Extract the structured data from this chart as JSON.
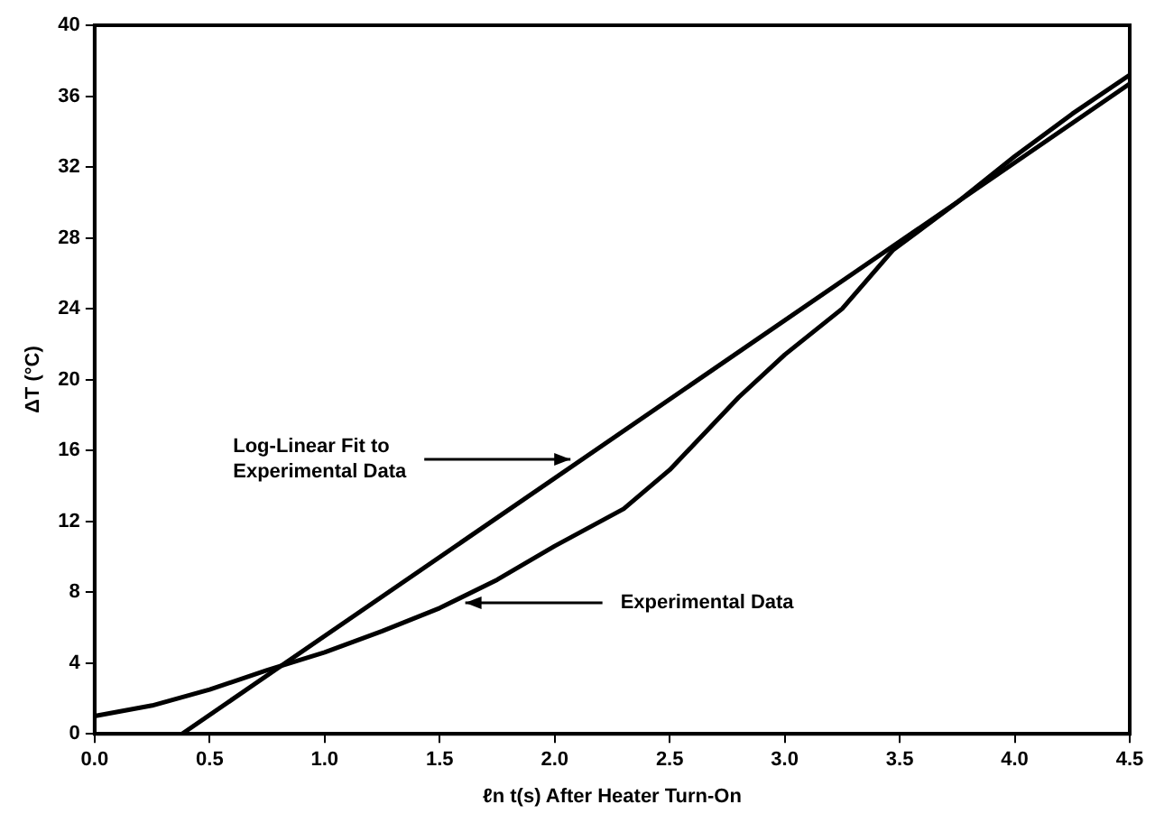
{
  "chart_data": {
    "type": "line",
    "xlabel": "ℓn t(s) After Heater Turn-On",
    "ylabel": "ΔT (°C)",
    "xlim": [
      0,
      4.5
    ],
    "xticks": [
      {
        "value": 0,
        "label": "0.0"
      },
      {
        "value": 0.5,
        "label": "0.5"
      },
      {
        "value": 1,
        "label": "1.0"
      },
      {
        "value": 1.5,
        "label": "1.5"
      },
      {
        "value": 2,
        "label": "2.0"
      },
      {
        "value": 2.5,
        "label": "2.5"
      },
      {
        "value": 3,
        "label": "3.0"
      },
      {
        "value": 3.5,
        "label": "3.5"
      },
      {
        "value": 4,
        "label": "4.0"
      },
      {
        "value": 4.5,
        "label": "4.5"
      }
    ],
    "ylim": [
      0,
      40
    ],
    "yticks": [
      0,
      4,
      8,
      12,
      16,
      20,
      24,
      28,
      32,
      36,
      40
    ],
    "grid": false,
    "legend": false,
    "marker": "none",
    "line_style": "solid",
    "series": [
      {
        "color": "#000000",
        "x": [
          0,
          0.25,
          0.5,
          0.75,
          1,
          1.25,
          1.5,
          1.75,
          2,
          2.3,
          2.5,
          2.8,
          3,
          3.25,
          3.47,
          3.75,
          4,
          4.25,
          4.5
        ],
        "values": [
          1,
          1.6,
          2.5,
          3.6,
          4.6,
          5.8,
          7.1,
          8.7,
          10.6,
          12.7,
          14.9,
          19,
          21.4,
          24,
          27.3,
          30,
          32.6,
          35,
          37.2
        ]
      },
      {
        "type": "line",
        "color": "#000000",
        "x": [
          0.38,
          4.5
        ],
        "values": [
          0,
          36.7
        ]
      }
    ],
    "annotations": [
      {
        "text": "Log-Linear Fit to\nExperimental Data",
        "x": 2.1,
        "y": 15.5
      },
      {
        "text": "Experimental Data",
        "x": 1.58,
        "y": 7.4
      }
    ]
  }
}
